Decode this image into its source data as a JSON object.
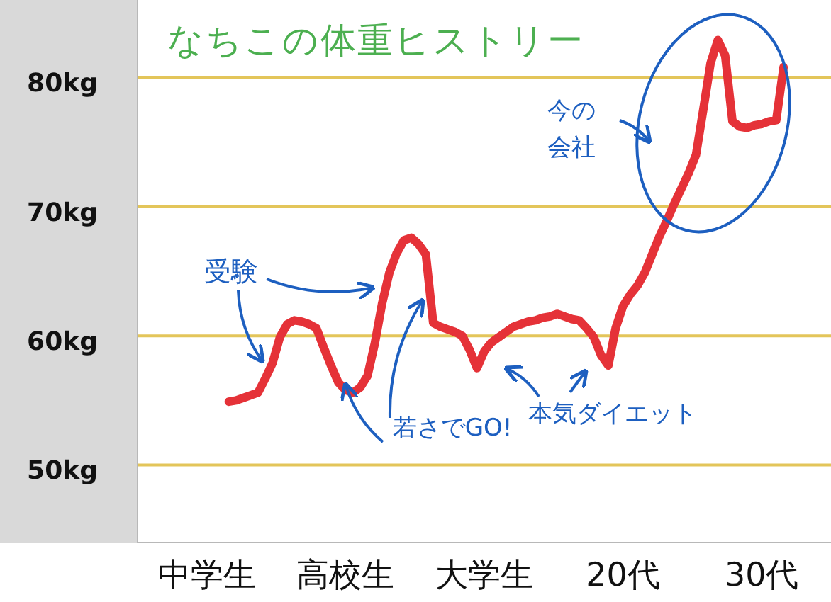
{
  "chart_data": {
    "type": "line",
    "title": "なちこの体重ヒストリー",
    "categories": [
      null,
      null,
      null,
      null,
      null,
      null,
      null,
      null,
      null,
      "中学生",
      null,
      null,
      null,
      null,
      null,
      null,
      null,
      null,
      null,
      null,
      null,
      null,
      null,
      null,
      null,
      null,
      null,
      null,
      "高校生",
      null,
      null,
      null,
      null,
      null,
      null,
      null,
      null,
      null,
      null,
      null,
      null,
      null,
      null,
      null,
      null,
      null,
      null,
      "大学生",
      null,
      null,
      null,
      null,
      null,
      null,
      null,
      null,
      null,
      null,
      null,
      null,
      null,
      null,
      null,
      null,
      null,
      null,
      "20代",
      null,
      null,
      null,
      null,
      null,
      null,
      null,
      null,
      null,
      null,
      null,
      null,
      null,
      null,
      null,
      null,
      null,
      null,
      "30代",
      null,
      null,
      null,
      null,
      null,
      null,
      null,
      null,
      null
    ],
    "series": [
      {
        "color": "#e53238",
        "values": [
          null,
          null,
          null,
          null,
          null,
          null,
          null,
          null,
          null,
          null,
          null,
          null,
          54.9,
          55.0,
          55.2,
          55.4,
          55.6,
          56.7,
          57.9,
          59.9,
          60.9,
          61.2,
          61.1,
          60.9,
          60.6,
          59.1,
          57.7,
          56.4,
          55.8,
          55.6,
          56.0,
          56.9,
          59.4,
          62.5,
          64.9,
          66.4,
          67.4,
          67.6,
          67.1,
          66.3,
          61.0,
          60.7,
          60.5,
          60.3,
          60.0,
          58.9,
          57.5,
          58.8,
          59.5,
          59.9,
          60.3,
          60.7,
          60.9,
          61.1,
          61.2,
          61.4,
          61.5,
          61.7,
          61.5,
          61.3,
          61.2,
          60.6,
          59.9,
          58.5,
          57.7,
          60.6,
          62.3,
          63.2,
          63.9,
          64.9,
          66.3,
          67.7,
          68.9,
          70.2,
          71.4,
          72.6,
          74.0,
          77.5,
          81.1,
          82.9,
          81.7,
          76.6,
          76.2,
          76.1,
          76.3,
          76.4,
          76.6,
          76.7,
          80.8,
          null,
          null,
          null,
          null,
          null,
          null
        ]
      }
    ],
    "ylim": [
      44,
      86
    ],
    "yticks": [
      {
        "value": 50,
        "label": "50kg"
      },
      {
        "value": 60,
        "label": "60kg"
      },
      {
        "value": 70,
        "label": "70kg"
      },
      {
        "value": 80,
        "label": "80kg"
      }
    ],
    "grid": "y",
    "marker": "none",
    "line_style": "solid",
    "annotations": [
      "受験",
      {
        "text": "若さでGO!",
        "x": "高校生",
        "y": 55.8
      },
      "本気ダイエット",
      "今の会社"
    ]
  }
}
